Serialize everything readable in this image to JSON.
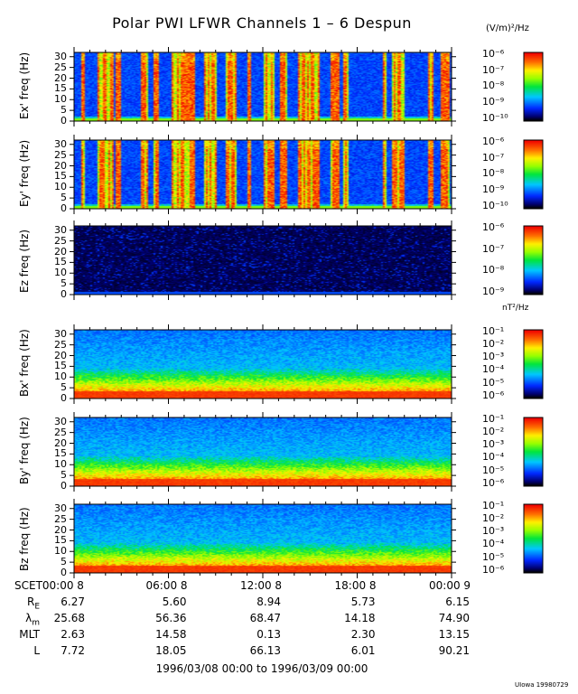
{
  "title": "Polar PWI LFWR Channels 1 – 6 Despun",
  "units": {
    "e": "(V/m)²/Hz",
    "b": "nT²/Hz"
  },
  "chart_data": {
    "type": "heatmap",
    "title": "Polar PWI LFWR Channels 1 – 6 Despun",
    "x_range_hours": [
      0,
      24
    ],
    "y_range_hz": [
      0,
      32
    ],
    "panels": [
      {
        "name": "ex",
        "ylabel": "Ex' freq (Hz)",
        "colorbar_exp": [
          -10,
          -6
        ],
        "colorbar_labels": [
          "10⁻⁶",
          "10⁻⁷",
          "10⁻⁸",
          "10⁻⁹",
          "10⁻¹⁰"
        ],
        "pattern": "bursty"
      },
      {
        "name": "ey",
        "ylabel": "Ey' freq (Hz)",
        "colorbar_exp": [
          -10,
          -6
        ],
        "colorbar_labels": [
          "10⁻⁶",
          "10⁻⁷",
          "10⁻⁸",
          "10⁻⁹",
          "10⁻¹⁰"
        ],
        "pattern": "bursty"
      },
      {
        "name": "ez",
        "ylabel": "Ez freq (Hz)",
        "colorbar_exp": [
          -9,
          -6
        ],
        "colorbar_labels": [
          "10⁻⁶",
          "10⁻⁷",
          "10⁻⁸",
          "10⁻⁹"
        ],
        "pattern": "noise"
      },
      {
        "name": "bx",
        "ylabel": "Bx' freq (Hz)",
        "colorbar_exp": [
          -6,
          -1
        ],
        "colorbar_labels": [
          "10⁻¹",
          "10⁻²",
          "10⁻³",
          "10⁻⁴",
          "10⁻⁵",
          "10⁻⁶"
        ],
        "pattern": "magnetic"
      },
      {
        "name": "by",
        "ylabel": "By' freq (Hz)",
        "colorbar_exp": [
          -6,
          -1
        ],
        "colorbar_labels": [
          "10⁻¹",
          "10⁻²",
          "10⁻³",
          "10⁻⁴",
          "10⁻⁵",
          "10⁻⁶"
        ],
        "pattern": "magnetic"
      },
      {
        "name": "bz",
        "ylabel": "Bz freq (Hz)",
        "colorbar_exp": [
          -6,
          -1
        ],
        "colorbar_labels": [
          "10⁻¹",
          "10⁻²",
          "10⁻³",
          "10⁻⁴",
          "10⁻⁵",
          "10⁻⁶"
        ],
        "pattern": "magnetic"
      }
    ],
    "ytick_labels": [
      "30",
      "25",
      "20",
      "15",
      "10",
      "5",
      "0"
    ],
    "bursts_hours": [
      [
        0.4,
        0.6
      ],
      [
        1.4,
        2.5
      ],
      [
        2.6,
        2.9
      ],
      [
        4.2,
        4.6
      ],
      [
        5.0,
        5.3
      ],
      [
        6.2,
        7.6
      ],
      [
        8.2,
        9.0
      ],
      [
        9.6,
        10.3
      ],
      [
        11.0,
        11.2
      ],
      [
        12.0,
        12.7
      ],
      [
        13.0,
        13.5
      ],
      [
        14.2,
        15.6
      ],
      [
        16.2,
        16.8
      ],
      [
        17.0,
        17.4
      ],
      [
        19.6,
        19.8
      ],
      [
        20.2,
        21.0
      ],
      [
        22.4,
        22.8
      ],
      [
        23.3,
        23.8
      ]
    ],
    "x_labels": [
      "SCET00:00  8",
      "06:00  8",
      "12:00  8",
      "18:00  8",
      "00:00  9"
    ],
    "ephemeris": [
      {
        "label": "R",
        "sub": "E",
        "values": [
          "6.27",
          "5.60",
          "8.94",
          "5.73",
          "6.15"
        ]
      },
      {
        "label": "λ",
        "sub": "m",
        "values": [
          "25.68",
          "56.36",
          "68.47",
          "14.18",
          "74.90"
        ]
      },
      {
        "label": "MLT",
        "sub": "",
        "values": [
          "2.63",
          "14.58",
          "0.13",
          "2.30",
          "13.15"
        ]
      },
      {
        "label": "L",
        "sub": "",
        "values": [
          "7.72",
          "18.05",
          "66.13",
          "6.01",
          "90.21"
        ]
      }
    ]
  },
  "range_text": "1996/03/08 00:00 to 1996/03/09 00:00",
  "credit": "UIowa 19980729"
}
